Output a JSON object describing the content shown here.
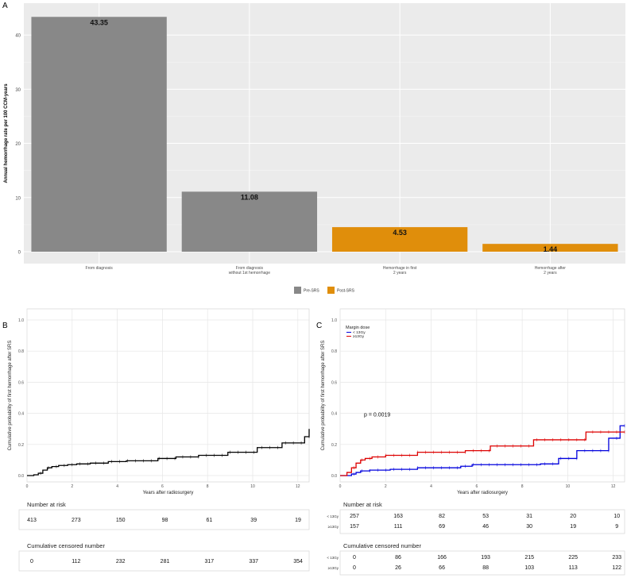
{
  "panel_labels": {
    "a": "A",
    "b": "B",
    "c": "C"
  },
  "colors": {
    "pre": "#888888",
    "post": "#E08E0B",
    "km": "#000000",
    "low_dose": "#0000DD",
    "high_dose": "#DD0000",
    "grid": "#e6e6e6",
    "panel_bg": "#ebebeb"
  },
  "chart_data": [
    {
      "type": "bar",
      "panel": "A",
      "title": "",
      "xlabel": "",
      "ylabel": "Annual hemorrhage rate per 100 CCM-years",
      "ylim": [
        0,
        45
      ],
      "yticks": [
        0,
        10,
        20,
        30,
        40
      ],
      "categories": [
        "From diagnosis",
        "From diagnosis\nwithout 1st hemorrhage",
        "Hemorrhage in first\n2 years",
        "Hemorrhage after\n2 years"
      ],
      "values": [
        43.35,
        11.08,
        4.53,
        1.44
      ],
      "value_labels": [
        "43.35",
        "11.08",
        "4.53",
        "1.44"
      ],
      "groups": [
        "Pre-SRS",
        "Pre-SRS",
        "Post-SRS",
        "Post-SRS"
      ],
      "legend": {
        "placement": "bottom",
        "entries": [
          "Pre-SRS",
          "Post-SRS"
        ]
      },
      "grid": true
    },
    {
      "type": "line",
      "panel": "B",
      "title": "",
      "xlabel": "Years after radiosurgery",
      "ylabel": "Cumulative probability of first hemorrhage after SRS",
      "xlim": [
        0,
        12.5
      ],
      "ylim": [
        0,
        1.0
      ],
      "xticks": [
        0,
        2,
        4,
        6,
        8,
        10,
        12
      ],
      "yticks": [
        0.0,
        0.2,
        0.4,
        0.6,
        0.8,
        1.0
      ],
      "yticklabels": [
        "0.0",
        "0.2",
        "0.4",
        "0.6",
        "0.8",
        "1.0"
      ],
      "grid": true,
      "series": [
        {
          "x": [
            0,
            0.3,
            0.5,
            0.7,
            0.9,
            1.1,
            1.4,
            1.8,
            2.2,
            2.8,
            3.6,
            4.4,
            5.8,
            6.6,
            7.6,
            8.9,
            10.2,
            11.3,
            12.3,
            12.5
          ],
          "y": [
            0,
            0.005,
            0.015,
            0.035,
            0.05,
            0.058,
            0.065,
            0.07,
            0.075,
            0.08,
            0.09,
            0.095,
            0.11,
            0.12,
            0.13,
            0.15,
            0.18,
            0.21,
            0.25,
            0.3
          ]
        }
      ],
      "risk_table": {
        "title": "Number at risk",
        "rows": [
          {
            "label": "",
            "values": [
              "413",
              "273",
              "150",
              "98",
              "61",
              "39",
              "19"
            ]
          }
        ]
      },
      "censored_table": {
        "title": "Cumulative censored number",
        "rows": [
          {
            "label": "",
            "values": [
              "0",
              "112",
              "232",
              "281",
              "317",
              "337",
              "354"
            ]
          }
        ]
      }
    },
    {
      "type": "line",
      "panel": "C",
      "title": "",
      "xlabel": "Years after radiosurgery",
      "ylabel": "Cumulative probability of first hemorrhage after SRS",
      "xlim": [
        0,
        12.5
      ],
      "ylim": [
        0,
        1.0
      ],
      "xticks": [
        0,
        2,
        4,
        6,
        8,
        10,
        12
      ],
      "yticks": [
        0.0,
        0.2,
        0.4,
        0.6,
        0.8,
        1.0
      ],
      "yticklabels": [
        "0.0",
        "0.2",
        "0.4",
        "0.6",
        "0.8",
        "1.0"
      ],
      "grid": true,
      "legend": {
        "title": "Margin dose",
        "placement": "top-left"
      },
      "annotation": "p = 0.0019",
      "series": [
        {
          "name": "< 13Gy",
          "x": [
            0,
            0.5,
            0.7,
            0.9,
            1.3,
            2.2,
            3.4,
            5.3,
            5.8,
            8.8,
            9.6,
            10.4,
            11.8,
            12.3,
            12.5
          ],
          "y": [
            0,
            0.01,
            0.02,
            0.03,
            0.035,
            0.04,
            0.05,
            0.06,
            0.07,
            0.075,
            0.11,
            0.16,
            0.24,
            0.32,
            0.32
          ]
        },
        {
          "name": "≥13Gy",
          "x": [
            0,
            0.3,
            0.5,
            0.7,
            0.9,
            1.1,
            1.4,
            2.0,
            3.4,
            5.5,
            6.6,
            8.5,
            10.8,
            12.5
          ],
          "y": [
            0,
            0.02,
            0.05,
            0.08,
            0.1,
            0.11,
            0.12,
            0.13,
            0.15,
            0.16,
            0.19,
            0.23,
            0.28,
            0.28
          ]
        }
      ],
      "risk_table": {
        "title": "Number at risk",
        "rows": [
          {
            "label": "< 13Gy",
            "values": [
              "257",
              "163",
              "82",
              "53",
              "31",
              "20",
              "10"
            ]
          },
          {
            "label": "≥13Gy",
            "values": [
              "157",
              "111",
              "69",
              "46",
              "30",
              "19",
              "9"
            ]
          }
        ]
      },
      "censored_table": {
        "title": "Cumulative censored number",
        "rows": [
          {
            "label": "< 13Gy",
            "values": [
              "0",
              "86",
              "166",
              "193",
              "215",
              "225",
              "233"
            ]
          },
          {
            "label": "≥13Gy",
            "values": [
              "0",
              "26",
              "66",
              "88",
              "103",
              "113",
              "122"
            ]
          }
        ]
      }
    }
  ]
}
